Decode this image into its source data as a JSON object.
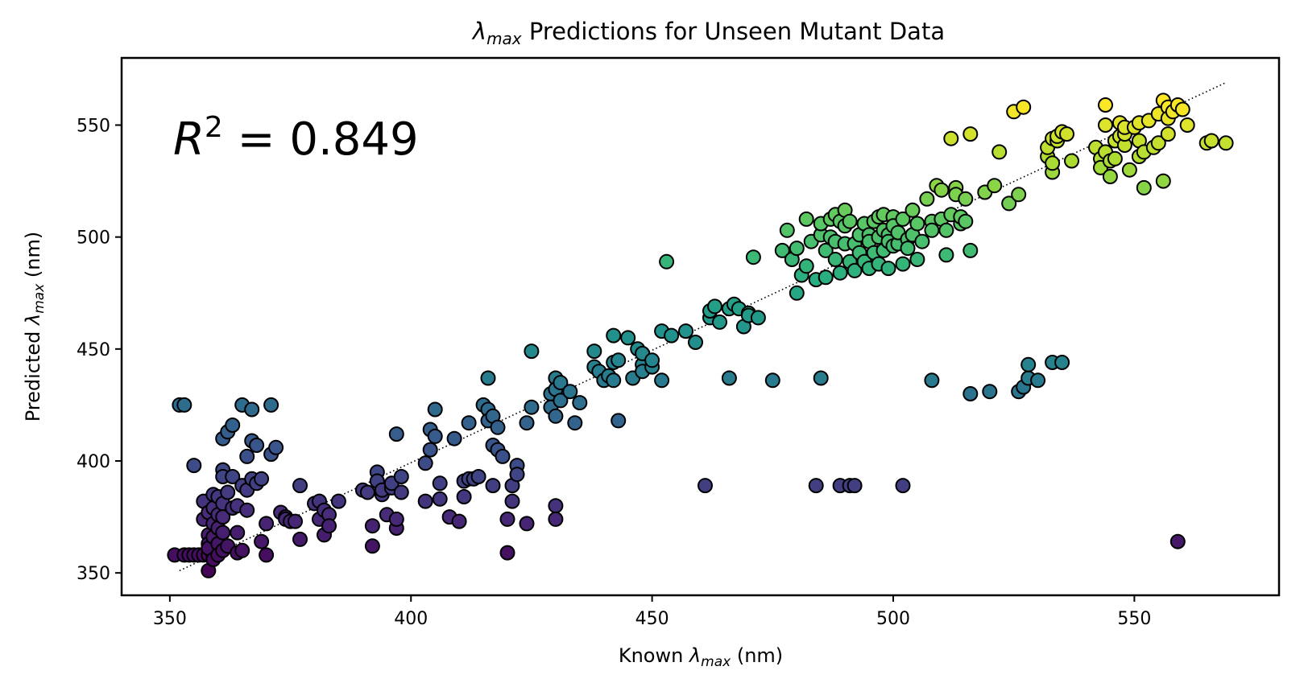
{
  "chart_data": {
    "type": "scatter",
    "title": {
      "main": "λ",
      "sub": "max",
      "rest": " Predictions for Unseen Mutant Data"
    },
    "xlabel": {
      "pre": "Known ",
      "main": "λ",
      "sub": "max",
      "post": " (nm)"
    },
    "ylabel": {
      "pre": "Predicted ",
      "main": "λ",
      "sub": "max",
      "post": " (nm)"
    },
    "annotation": {
      "main": "R",
      "sup": "2",
      "rest": " = 0.849"
    },
    "xlim": [
      340,
      580
    ],
    "ylim": [
      340,
      580
    ],
    "xticks": [
      350,
      400,
      450,
      500,
      550
    ],
    "yticks": [
      350,
      400,
      450,
      500,
      550
    ],
    "xtick_labels": [
      "350",
      "400",
      "450",
      "500",
      "550"
    ],
    "ytick_labels": [
      "350",
      "400",
      "450",
      "500",
      "550"
    ],
    "fit_line": {
      "x": [
        352,
        569
      ],
      "y": [
        351,
        569
      ],
      "style": "dotted"
    },
    "colormap": "viridis",
    "color_range": [
      350,
      560
    ],
    "grid": false,
    "points": [
      [
        351,
        358
      ],
      [
        353,
        358
      ],
      [
        354,
        358
      ],
      [
        355,
        358
      ],
      [
        356,
        358
      ],
      [
        357,
        358
      ],
      [
        358,
        358
      ],
      [
        359,
        358
      ],
      [
        352,
        425
      ],
      [
        353,
        425
      ],
      [
        355,
        398
      ],
      [
        357,
        382
      ],
      [
        357,
        374
      ],
      [
        358,
        377
      ],
      [
        358,
        367
      ],
      [
        358,
        363
      ],
      [
        358,
        361
      ],
      [
        358,
        351
      ],
      [
        359,
        385
      ],
      [
        359,
        379
      ],
      [
        359,
        372
      ],
      [
        359,
        366
      ],
      [
        359,
        356
      ],
      [
        360,
        384
      ],
      [
        360,
        376
      ],
      [
        360,
        370
      ],
      [
        360,
        363
      ],
      [
        360,
        358
      ],
      [
        361,
        410
      ],
      [
        361,
        396
      ],
      [
        361,
        393
      ],
      [
        361,
        381
      ],
      [
        361,
        375
      ],
      [
        361,
        368
      ],
      [
        361,
        360
      ],
      [
        362,
        413
      ],
      [
        362,
        386
      ],
      [
        362,
        362
      ],
      [
        363,
        416
      ],
      [
        363,
        393
      ],
      [
        363,
        379
      ],
      [
        364,
        380
      ],
      [
        364,
        368
      ],
      [
        364,
        359
      ],
      [
        365,
        425
      ],
      [
        365,
        389
      ],
      [
        365,
        360
      ],
      [
        366,
        402
      ],
      [
        366,
        387
      ],
      [
        366,
        378
      ],
      [
        367,
        423
      ],
      [
        367,
        409
      ],
      [
        367,
        392
      ],
      [
        368,
        407
      ],
      [
        368,
        390
      ],
      [
        369,
        392
      ],
      [
        369,
        364
      ],
      [
        370,
        372
      ],
      [
        370,
        358
      ],
      [
        371,
        425
      ],
      [
        371,
        403
      ],
      [
        372,
        406
      ],
      [
        373,
        377
      ],
      [
        374,
        375
      ],
      [
        374,
        374
      ],
      [
        375,
        373
      ],
      [
        376,
        373
      ],
      [
        377,
        389
      ],
      [
        377,
        365
      ],
      [
        380,
        381
      ],
      [
        381,
        382
      ],
      [
        381,
        374
      ],
      [
        382,
        378
      ],
      [
        382,
        367
      ],
      [
        383,
        376
      ],
      [
        383,
        371
      ],
      [
        385,
        382
      ],
      [
        390,
        387
      ],
      [
        391,
        386
      ],
      [
        392,
        362
      ],
      [
        392,
        371
      ],
      [
        393,
        395
      ],
      [
        393,
        391
      ],
      [
        394,
        385
      ],
      [
        394,
        387
      ],
      [
        395,
        376
      ],
      [
        396,
        388
      ],
      [
        396,
        390
      ],
      [
        397,
        370
      ],
      [
        397,
        374
      ],
      [
        397,
        412
      ],
      [
        398,
        393
      ],
      [
        398,
        386
      ],
      [
        403,
        399
      ],
      [
        403,
        382
      ],
      [
        404,
        405
      ],
      [
        404,
        414
      ],
      [
        405,
        423
      ],
      [
        405,
        411
      ],
      [
        406,
        390
      ],
      [
        406,
        383
      ],
      [
        408,
        375
      ],
      [
        409,
        410
      ],
      [
        410,
        373
      ],
      [
        411,
        391
      ],
      [
        411,
        384
      ],
      [
        412,
        417
      ],
      [
        412,
        392
      ],
      [
        413,
        392
      ],
      [
        414,
        393
      ],
      [
        415,
        425
      ],
      [
        416,
        437
      ],
      [
        416,
        423
      ],
      [
        416,
        418
      ],
      [
        417,
        420
      ],
      [
        417,
        407
      ],
      [
        417,
        389
      ],
      [
        418,
        415
      ],
      [
        418,
        405
      ],
      [
        419,
        402
      ],
      [
        420,
        374
      ],
      [
        420,
        359
      ],
      [
        421,
        382
      ],
      [
        421,
        389
      ],
      [
        422,
        398
      ],
      [
        422,
        394
      ],
      [
        424,
        372
      ],
      [
        424,
        417
      ],
      [
        425,
        424
      ],
      [
        425,
        449
      ],
      [
        429,
        430
      ],
      [
        429,
        424
      ],
      [
        430,
        437
      ],
      [
        430,
        432
      ],
      [
        430,
        420
      ],
      [
        430,
        380
      ],
      [
        430,
        374
      ],
      [
        431,
        427
      ],
      [
        431,
        435
      ],
      [
        433,
        431
      ],
      [
        434,
        417
      ],
      [
        435,
        426
      ],
      [
        438,
        442
      ],
      [
        438,
        449
      ],
      [
        439,
        440
      ],
      [
        440,
        436
      ],
      [
        441,
        438
      ],
      [
        442,
        456
      ],
      [
        442,
        444
      ],
      [
        442,
        436
      ],
      [
        443,
        445
      ],
      [
        443,
        418
      ],
      [
        445,
        455
      ],
      [
        446,
        437
      ],
      [
        447,
        450
      ],
      [
        448,
        443
      ],
      [
        448,
        440
      ],
      [
        448,
        448
      ],
      [
        450,
        442
      ],
      [
        450,
        445
      ],
      [
        452,
        436
      ],
      [
        452,
        458
      ],
      [
        453,
        489
      ],
      [
        454,
        456
      ],
      [
        457,
        458
      ],
      [
        459,
        453
      ],
      [
        461,
        389
      ],
      [
        462,
        464
      ],
      [
        462,
        467
      ],
      [
        463,
        469
      ],
      [
        464,
        462
      ],
      [
        466,
        437
      ],
      [
        466,
        468
      ],
      [
        467,
        470
      ],
      [
        468,
        468
      ],
      [
        469,
        460
      ],
      [
        470,
        466
      ],
      [
        470,
        465
      ],
      [
        471,
        491
      ],
      [
        472,
        464
      ],
      [
        475,
        436
      ],
      [
        477,
        494
      ],
      [
        478,
        503
      ],
      [
        479,
        490
      ],
      [
        480,
        475
      ],
      [
        480,
        495
      ],
      [
        481,
        483
      ],
      [
        482,
        508
      ],
      [
        482,
        487
      ],
      [
        483,
        498
      ],
      [
        484,
        389
      ],
      [
        484,
        481
      ],
      [
        485,
        501
      ],
      [
        485,
        437
      ],
      [
        485,
        506
      ],
      [
        486,
        494
      ],
      [
        486,
        482
      ],
      [
        487,
        500
      ],
      [
        487,
        508
      ],
      [
        488,
        510
      ],
      [
        488,
        498
      ],
      [
        488,
        490
      ],
      [
        489,
        389
      ],
      [
        489,
        484
      ],
      [
        489,
        507
      ],
      [
        490,
        512
      ],
      [
        490,
        505
      ],
      [
        490,
        497
      ],
      [
        491,
        389
      ],
      [
        491,
        489
      ],
      [
        491,
        507
      ],
      [
        492,
        497
      ],
      [
        492,
        389
      ],
      [
        492,
        485
      ],
      [
        493,
        501
      ],
      [
        493,
        493
      ],
      [
        494,
        506
      ],
      [
        494,
        489
      ],
      [
        495,
        501
      ],
      [
        495,
        498
      ],
      [
        495,
        486
      ],
      [
        496,
        507
      ],
      [
        496,
        493
      ],
      [
        497,
        509
      ],
      [
        497,
        500
      ],
      [
        497,
        488
      ],
      [
        498,
        510
      ],
      [
        498,
        503
      ],
      [
        498,
        494
      ],
      [
        499,
        501
      ],
      [
        499,
        498
      ],
      [
        499,
        486
      ],
      [
        500,
        509
      ],
      [
        500,
        505
      ],
      [
        500,
        496
      ],
      [
        501,
        497
      ],
      [
        501,
        502
      ],
      [
        502,
        389
      ],
      [
        502,
        508
      ],
      [
        502,
        488
      ],
      [
        503,
        499
      ],
      [
        503,
        495
      ],
      [
        504,
        512
      ],
      [
        504,
        501
      ],
      [
        505,
        490
      ],
      [
        505,
        506
      ],
      [
        506,
        498
      ],
      [
        507,
        517
      ],
      [
        508,
        507
      ],
      [
        508,
        503
      ],
      [
        508,
        436
      ],
      [
        509,
        523
      ],
      [
        510,
        508
      ],
      [
        510,
        521
      ],
      [
        511,
        503
      ],
      [
        511,
        492
      ],
      [
        512,
        544
      ],
      [
        512,
        510
      ],
      [
        513,
        522
      ],
      [
        513,
        519
      ],
      [
        514,
        506
      ],
      [
        514,
        509
      ],
      [
        515,
        517
      ],
      [
        515,
        507
      ],
      [
        516,
        546
      ],
      [
        516,
        430
      ],
      [
        516,
        494
      ],
      [
        519,
        520
      ],
      [
        520,
        431
      ],
      [
        521,
        523
      ],
      [
        522,
        538
      ],
      [
        524,
        515
      ],
      [
        525,
        556
      ],
      [
        526,
        431
      ],
      [
        526,
        519
      ],
      [
        527,
        558
      ],
      [
        527,
        433
      ],
      [
        528,
        437
      ],
      [
        528,
        443
      ],
      [
        530,
        436
      ],
      [
        532,
        536
      ],
      [
        532,
        540
      ],
      [
        533,
        529
      ],
      [
        533,
        533
      ],
      [
        533,
        544
      ],
      [
        533,
        444
      ],
      [
        534,
        543
      ],
      [
        534,
        545
      ],
      [
        535,
        444
      ],
      [
        535,
        547
      ],
      [
        536,
        546
      ],
      [
        537,
        534
      ],
      [
        542,
        540
      ],
      [
        543,
        535
      ],
      [
        543,
        531
      ],
      [
        544,
        550
      ],
      [
        544,
        559
      ],
      [
        544,
        538
      ],
      [
        545,
        527
      ],
      [
        545,
        534
      ],
      [
        546,
        543
      ],
      [
        546,
        535
      ],
      [
        547,
        545
      ],
      [
        547,
        551
      ],
      [
        548,
        541
      ],
      [
        548,
        546
      ],
      [
        548,
        549
      ],
      [
        549,
        530
      ],
      [
        550,
        549
      ],
      [
        551,
        551
      ],
      [
        551,
        543
      ],
      [
        551,
        536
      ],
      [
        552,
        522
      ],
      [
        552,
        538
      ],
      [
        553,
        552
      ],
      [
        554,
        540
      ],
      [
        555,
        555
      ],
      [
        555,
        542
      ],
      [
        556,
        561
      ],
      [
        556,
        525
      ],
      [
        557,
        558
      ],
      [
        557,
        546
      ],
      [
        557,
        553
      ],
      [
        558,
        556
      ],
      [
        559,
        559
      ],
      [
        559,
        364
      ],
      [
        560,
        557
      ],
      [
        561,
        550
      ],
      [
        565,
        542
      ],
      [
        566,
        543
      ],
      [
        569,
        542
      ]
    ]
  }
}
